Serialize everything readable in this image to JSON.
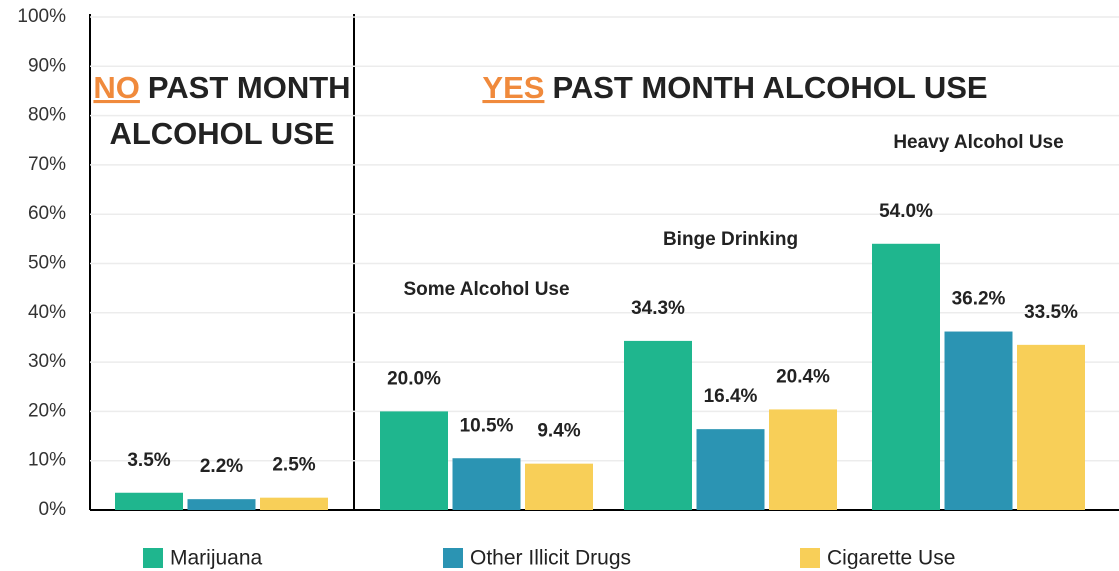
{
  "chart_data": {
    "type": "bar",
    "categories": [
      null,
      "Some Alcohol Use",
      "Binge Drinking",
      "Heavy Alcohol Use"
    ],
    "series": [
      {
        "name": "Marijuana",
        "color": "#1fb68e",
        "values": [
          3.5,
          20.0,
          34.3,
          54.0
        ],
        "value_labels": [
          "3.5%",
          "20.0%",
          "34.3%",
          "54.0%"
        ]
      },
      {
        "name": "Other Illicit Drugs",
        "color": "#2b94b3",
        "values": [
          2.2,
          10.5,
          16.4,
          36.2
        ],
        "value_labels": [
          "2.2%",
          "10.5%",
          "16.4%",
          "36.2%"
        ]
      },
      {
        "name": "Cigarette Use",
        "color": "#f8cf58",
        "values": [
          2.5,
          9.4,
          20.4,
          33.5
        ],
        "value_labels": [
          "2.5%",
          "9.4%",
          "20.4%",
          "33.5%"
        ]
      }
    ],
    "sections": [
      {
        "highlight": "NO",
        "lines": [
          "PAST MONTH",
          "ALCOHOL USE"
        ]
      },
      {
        "highlight": "YES",
        "lines": [
          "PAST MONTH ALCOHOL USE"
        ]
      }
    ],
    "ylim": [
      0,
      100
    ],
    "yticks": [
      {
        "value": 0,
        "label": "0%"
      },
      {
        "value": 10,
        "label": "10%"
      },
      {
        "value": 20,
        "label": "20%"
      },
      {
        "value": 30,
        "label": "30%"
      },
      {
        "value": 40,
        "label": "40%"
      },
      {
        "value": 50,
        "label": "50%"
      },
      {
        "value": 60,
        "label": "60%"
      },
      {
        "value": 70,
        "label": "70%"
      },
      {
        "value": 80,
        "label": "80%"
      },
      {
        "value": 90,
        "label": "90%"
      },
      {
        "value": 100,
        "label": "100%"
      }
    ],
    "grid": true,
    "legend": "bottom"
  }
}
